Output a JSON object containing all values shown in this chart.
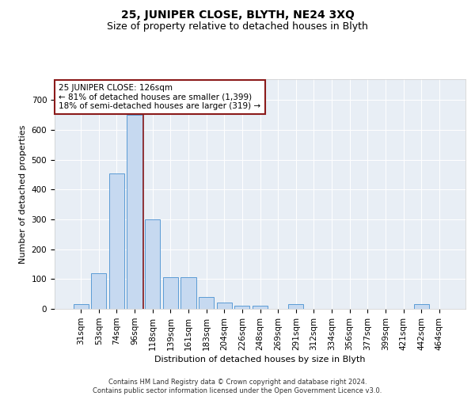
{
  "title": "25, JUNIPER CLOSE, BLYTH, NE24 3XQ",
  "subtitle": "Size of property relative to detached houses in Blyth",
  "xlabel": "Distribution of detached houses by size in Blyth",
  "ylabel": "Number of detached properties",
  "categories": [
    "31sqm",
    "53sqm",
    "74sqm",
    "96sqm",
    "118sqm",
    "139sqm",
    "161sqm",
    "183sqm",
    "204sqm",
    "226sqm",
    "248sqm",
    "269sqm",
    "291sqm",
    "312sqm",
    "334sqm",
    "356sqm",
    "377sqm",
    "399sqm",
    "421sqm",
    "442sqm",
    "464sqm"
  ],
  "values": [
    15,
    120,
    455,
    650,
    300,
    105,
    105,
    40,
    20,
    10,
    10,
    0,
    15,
    0,
    0,
    0,
    0,
    0,
    0,
    15,
    0
  ],
  "bar_color": "#c6d9f0",
  "bar_edge_color": "#5b9bd5",
  "highlight_line_color": "#8b1a1a",
  "annotation_text": "25 JUNIPER CLOSE: 126sqm\n← 81% of detached houses are smaller (1,399)\n18% of semi-detached houses are larger (319) →",
  "annotation_box_color": "#ffffff",
  "annotation_box_edge_color": "#8b1a1a",
  "footer": "Contains HM Land Registry data © Crown copyright and database right 2024.\nContains public sector information licensed under the Open Government Licence v3.0.",
  "ylim": [
    0,
    770
  ],
  "yticks": [
    0,
    100,
    200,
    300,
    400,
    500,
    600,
    700
  ],
  "background_color": "#e8eef5",
  "title_fontsize": 10,
  "subtitle_fontsize": 9,
  "axis_fontsize": 8,
  "tick_fontsize": 7.5,
  "footer_fontsize": 6
}
